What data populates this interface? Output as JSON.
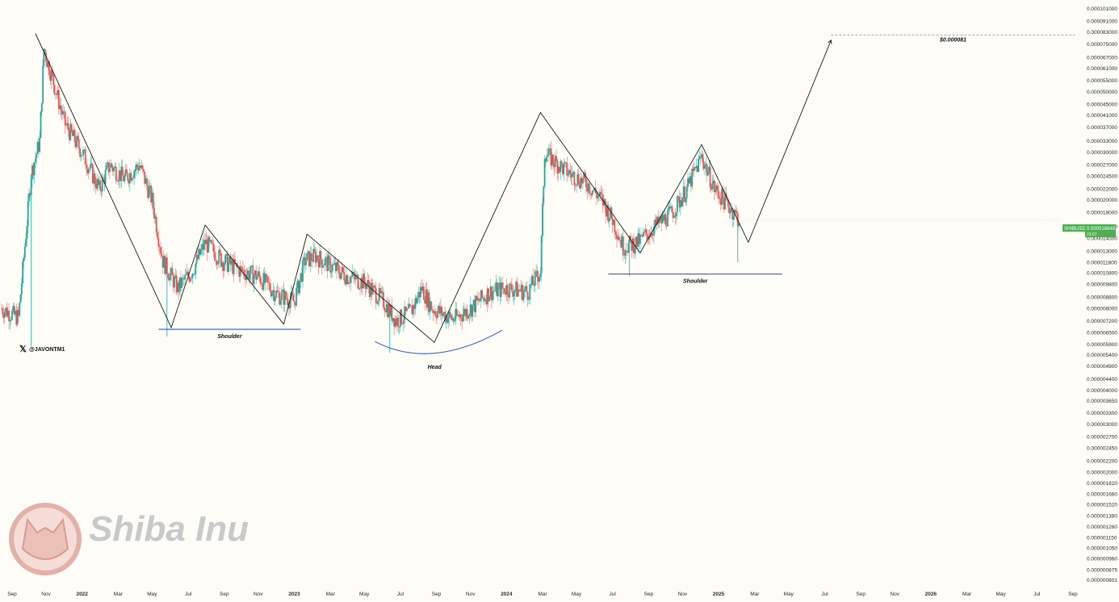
{
  "chart_data": {
    "type": "candlestick",
    "symbol_badge": "SHIBUSD",
    "last_price_label": "0.000016848",
    "badge_sub": "23:57",
    "handle": "@JAVONTM1",
    "watermark": "Shiba Inu",
    "target_label": "$0.000081",
    "y_scale": "log",
    "y_ticks": [
      "0.000101000",
      "0.000091000",
      "0.000083000",
      "0.000075000",
      "0.000067000",
      "0.000061000",
      "0.000055000",
      "0.000050000",
      "0.000045000",
      "0.000041000",
      "0.000037000",
      "0.000033000",
      "0.000030000",
      "0.000027000",
      "0.000024500",
      "0.000022000",
      "0.000020000",
      "0.000018000",
      "0.000016000",
      "0.000014500",
      "0.000013000",
      "0.000011800",
      "0.000010800",
      "0.000009800",
      "0.000008800",
      "0.000008000",
      "0.000007200",
      "0.000006500",
      "0.000005900",
      "0.000005400",
      "0.000004900",
      "0.000004400",
      "0.000004000",
      "0.000003650",
      "0.000003300",
      "0.000003000",
      "0.000002700",
      "0.000002450",
      "0.000002200",
      "0.000002000",
      "0.000001820",
      "0.000001660",
      "0.000001520",
      "0.000001380",
      "0.000001260",
      "0.000001150",
      "0.000001050",
      "0.000000960",
      "0.000000875",
      "0.000000801"
    ],
    "x_ticks": [
      {
        "label": "Sep",
        "t": 2021.67,
        "bold": false
      },
      {
        "label": "Nov",
        "t": 2021.83,
        "bold": false
      },
      {
        "label": "2022",
        "t": 2022.0,
        "bold": true
      },
      {
        "label": "Mar",
        "t": 2022.17,
        "bold": false
      },
      {
        "label": "May",
        "t": 2022.33,
        "bold": false
      },
      {
        "label": "Jul",
        "t": 2022.5,
        "bold": false
      },
      {
        "label": "Sep",
        "t": 2022.67,
        "bold": false
      },
      {
        "label": "Nov",
        "t": 2022.83,
        "bold": false
      },
      {
        "label": "2023",
        "t": 2023.0,
        "bold": true
      },
      {
        "label": "Mar",
        "t": 2023.17,
        "bold": false
      },
      {
        "label": "May",
        "t": 2023.33,
        "bold": false
      },
      {
        "label": "Jul",
        "t": 2023.5,
        "bold": false
      },
      {
        "label": "Sep",
        "t": 2023.67,
        "bold": false
      },
      {
        "label": "Nov",
        "t": 2023.83,
        "bold": false
      },
      {
        "label": "2024",
        "t": 2024.0,
        "bold": true
      },
      {
        "label": "Mar",
        "t": 2024.17,
        "bold": false
      },
      {
        "label": "May",
        "t": 2024.33,
        "bold": false
      },
      {
        "label": "Jul",
        "t": 2024.5,
        "bold": false
      },
      {
        "label": "Sep",
        "t": 2024.67,
        "bold": false
      },
      {
        "label": "Nov",
        "t": 2024.83,
        "bold": false
      },
      {
        "label": "2025",
        "t": 2025.0,
        "bold": true
      },
      {
        "label": "Mar",
        "t": 2025.17,
        "bold": false
      },
      {
        "label": "May",
        "t": 2025.33,
        "bold": false
      },
      {
        "label": "Jul",
        "t": 2025.5,
        "bold": false
      },
      {
        "label": "Sep",
        "t": 2025.67,
        "bold": false
      },
      {
        "label": "Nov",
        "t": 2025.83,
        "bold": false
      },
      {
        "label": "2026",
        "t": 2026.0,
        "bold": true
      },
      {
        "label": "Mar",
        "t": 2026.17,
        "bold": false
      },
      {
        "label": "May",
        "t": 2026.33,
        "bold": false
      },
      {
        "label": "Jul",
        "t": 2026.5,
        "bold": false
      },
      {
        "label": "Sep",
        "t": 2026.67,
        "bold": false
      }
    ],
    "price_path": [
      {
        "t": 2021.62,
        "p": 8e-06
      },
      {
        "t": 2021.7,
        "p": 7.4e-06
      },
      {
        "t": 2021.76,
        "p": 2.5e-05
      },
      {
        "t": 2021.8,
        "p": 3.3e-05
      },
      {
        "t": 2021.82,
        "p": 7.2e-05
      },
      {
        "t": 2021.86,
        "p": 5.6e-05
      },
      {
        "t": 2021.92,
        "p": 3.8e-05
      },
      {
        "t": 2022.0,
        "p": 3e-05
      },
      {
        "t": 2022.08,
        "p": 2.2e-05
      },
      {
        "t": 2022.13,
        "p": 2.7e-05
      },
      {
        "t": 2022.2,
        "p": 2.4e-05
      },
      {
        "t": 2022.27,
        "p": 2.7e-05
      },
      {
        "t": 2022.33,
        "p": 2e-05
      },
      {
        "t": 2022.38,
        "p": 1.2e-05
      },
      {
        "t": 2022.45,
        "p": 9.5e-06
      },
      {
        "t": 2022.52,
        "p": 1.1e-05
      },
      {
        "t": 2022.58,
        "p": 1.4e-05
      },
      {
        "t": 2022.66,
        "p": 1.2e-05
      },
      {
        "t": 2022.75,
        "p": 1.1e-05
      },
      {
        "t": 2022.83,
        "p": 1.05e-05
      },
      {
        "t": 2022.92,
        "p": 9e-06
      },
      {
        "t": 2023.0,
        "p": 8.5e-06
      },
      {
        "t": 2023.05,
        "p": 1.2e-05
      },
      {
        "t": 2023.1,
        "p": 1.25e-05
      },
      {
        "t": 2023.17,
        "p": 1.15e-05
      },
      {
        "t": 2023.25,
        "p": 1.05e-05
      },
      {
        "t": 2023.33,
        "p": 1e-05
      },
      {
        "t": 2023.42,
        "p": 8.5e-06
      },
      {
        "t": 2023.48,
        "p": 7.2e-06
      },
      {
        "t": 2023.55,
        "p": 7.8e-06
      },
      {
        "t": 2023.6,
        "p": 9.5e-06
      },
      {
        "t": 2023.65,
        "p": 8e-06
      },
      {
        "t": 2023.75,
        "p": 7.3e-06
      },
      {
        "t": 2023.83,
        "p": 8e-06
      },
      {
        "t": 2023.92,
        "p": 9.2e-06
      },
      {
        "t": 2024.0,
        "p": 9.5e-06
      },
      {
        "t": 2024.1,
        "p": 9.2e-06
      },
      {
        "t": 2024.16,
        "p": 1.1e-05
      },
      {
        "t": 2024.18,
        "p": 3e-05
      },
      {
        "t": 2024.22,
        "p": 2.8e-05
      },
      {
        "t": 2024.3,
        "p": 2.5e-05
      },
      {
        "t": 2024.38,
        "p": 2.3e-05
      },
      {
        "t": 2024.45,
        "p": 2e-05
      },
      {
        "t": 2024.5,
        "p": 1.7e-05
      },
      {
        "t": 2024.55,
        "p": 1.35e-05
      },
      {
        "t": 2024.62,
        "p": 1.4e-05
      },
      {
        "t": 2024.7,
        "p": 1.6e-05
      },
      {
        "t": 2024.78,
        "p": 1.8e-05
      },
      {
        "t": 2024.85,
        "p": 2.2e-05
      },
      {
        "t": 2024.92,
        "p": 2.9e-05
      },
      {
        "t": 2024.98,
        "p": 2.2e-05
      },
      {
        "t": 2025.05,
        "p": 1.9e-05
      },
      {
        "t": 2025.1,
        "p": 1.68e-05
      }
    ],
    "spikes": [
      {
        "t": 2021.76,
        "lo": 5.8e-06
      },
      {
        "t": 2022.4,
        "lo": 6.3e-06
      },
      {
        "t": 2023.45,
        "lo": 5.5e-06
      },
      {
        "t": 2024.58,
        "lo": 1.05e-05
      },
      {
        "t": 2025.09,
        "lo": 1.18e-05
      }
    ],
    "pattern_line": [
      {
        "t": 2021.78,
        "p": 8.2e-05
      },
      {
        "t": 2022.42,
        "p": 6.8e-06
      },
      {
        "t": 2022.58,
        "p": 1.62e-05
      },
      {
        "t": 2022.95,
        "p": 7e-06
      },
      {
        "t": 2023.06,
        "p": 1.5e-05
      },
      {
        "t": 2023.66,
        "p": 6e-06
      },
      {
        "t": 2024.16,
        "p": 4.2e-05
      },
      {
        "t": 2024.63,
        "p": 1.28e-05
      },
      {
        "t": 2024.92,
        "p": 3.2e-05
      },
      {
        "t": 2025.14,
        "p": 1.4e-05
      },
      {
        "t": 2025.53,
        "p": 7.75e-05
      }
    ],
    "target_price": 8.1e-05,
    "target_span": [
      2025.53,
      2026.68
    ],
    "shoulders": [
      {
        "t1": 2022.36,
        "t2": 2023.03,
        "p": 6.7e-06,
        "label": "Shoulder"
      },
      {
        "t1": 2024.48,
        "t2": 2025.3,
        "p": 1.07e-05,
        "label": "Shoulder"
      }
    ],
    "head_arc": {
      "t1": 2023.38,
      "t2": 2023.98,
      "label": "Head"
    },
    "colors": {
      "up": "#26a69a",
      "down": "#ef5350",
      "pattern": "#1a1a1a",
      "support": "#2f5bd8",
      "target": "#8a96c8",
      "badge": "#4caf50",
      "watermark_circle": "#e4b1a9"
    }
  }
}
